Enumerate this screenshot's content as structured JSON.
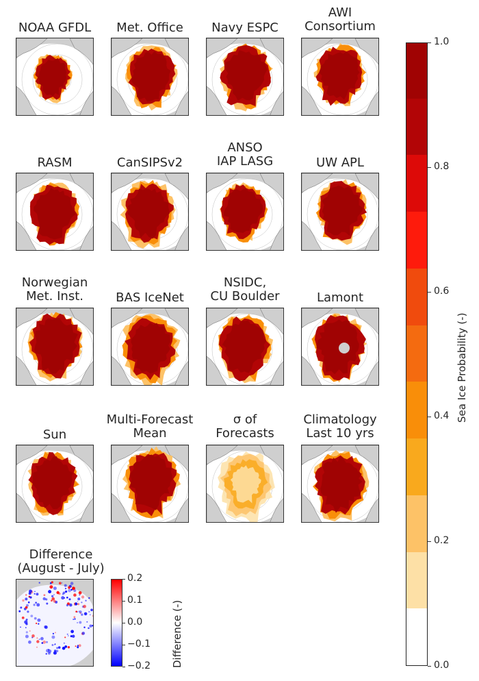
{
  "chart_data": [
    {
      "type": "heatmap",
      "kind": "small-multiples-maps",
      "map_projection": "north-polar-stereographic",
      "panels": [
        {
          "title": [
            "NOAA GFDL"
          ],
          "ice_extent": 0.45,
          "fuzz": 0.35,
          "variant": 1
        },
        {
          "title": [
            "Met. Office"
          ],
          "ice_extent": 0.78,
          "fuzz": 0.25,
          "variant": 2
        },
        {
          "title": [
            "Navy ESPC"
          ],
          "ice_extent": 0.85,
          "fuzz": 0.15,
          "variant": 3
        },
        {
          "title": [
            "AWI",
            "Consortium"
          ],
          "ice_extent": 0.8,
          "fuzz": 0.15,
          "variant": 4
        },
        {
          "title": [
            "RASM"
          ],
          "ice_extent": 0.8,
          "fuzz": 0.15,
          "variant": 5
        },
        {
          "title": [
            "CanSIPSv2"
          ],
          "ice_extent": 0.8,
          "fuzz": 0.4,
          "variant": 6
        },
        {
          "title": [
            "ANSO",
            "IAP LASG"
          ],
          "ice_extent": 0.72,
          "fuzz": 0.15,
          "variant": 7
        },
        {
          "title": [
            "UW APL"
          ],
          "ice_extent": 0.8,
          "fuzz": 0.2,
          "variant": 8
        },
        {
          "title": [
            "Norwegian",
            "Met. Inst."
          ],
          "ice_extent": 0.92,
          "fuzz": 0.1,
          "variant": 9
        },
        {
          "title": [
            "BAS IceNet"
          ],
          "ice_extent": 0.85,
          "fuzz": 0.55,
          "variant": 10
        },
        {
          "title": [
            "NSIDC,",
            "CU Boulder"
          ],
          "ice_extent": 0.88,
          "fuzz": 0.2,
          "variant": 11
        },
        {
          "title": [
            "Lamont"
          ],
          "ice_extent": 0.9,
          "fuzz": 0.1,
          "variant": 12,
          "pole_hole": true
        },
        {
          "title": [
            "Sun"
          ],
          "ice_extent": 0.82,
          "fuzz": 0.15,
          "variant": 13
        },
        {
          "title": [
            "Multi-Forecast",
            "Mean"
          ],
          "ice_extent": 0.88,
          "fuzz": 0.35,
          "variant": 14
        },
        {
          "title": [
            "σ of",
            "Forecasts"
          ],
          "ice_extent": 0.85,
          "fuzz": 1.0,
          "variant": 15,
          "mode": "sigma"
        },
        {
          "title": [
            "Climatology",
            "Last 10 yrs"
          ],
          "ice_extent": 0.88,
          "fuzz": 0.3,
          "variant": 16
        }
      ],
      "colorbar": {
        "label": "Sea Ice Probability (-)",
        "ticks": [
          "0.0",
          "0.2",
          "0.4",
          "0.6",
          "0.8",
          "1.0"
        ],
        "range": [
          0,
          1
        ],
        "bins": 11,
        "colors": [
          "#ffffff",
          "#fde0a6",
          "#fdc267",
          "#f9a91d",
          "#f98e09",
          "#f46b10",
          "#f04b0d",
          "#fe1b0c",
          "#dd0a08",
          "#b20506",
          "#a00303"
        ]
      }
    },
    {
      "type": "heatmap",
      "kind": "difference-map",
      "title": [
        "Difference",
        "(August - July)"
      ],
      "colorbar": {
        "label": "Difference (-)",
        "ticks": [
          "0.2",
          "0.1",
          "0.0",
          "−0.1",
          "−0.2"
        ],
        "range": [
          -0.2,
          0.2
        ],
        "colors": {
          "low": "#0000ff",
          "mid": "#ffffff",
          "high": "#ff0000"
        }
      }
    }
  ]
}
